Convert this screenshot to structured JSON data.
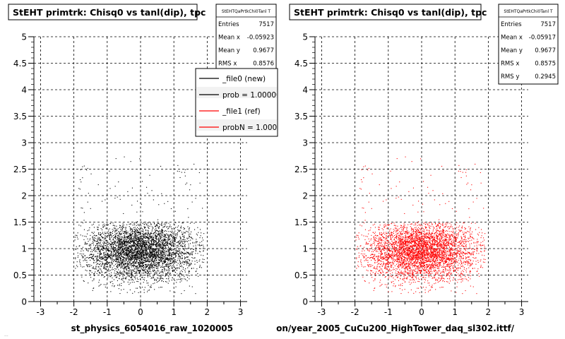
{
  "chart_data": [
    {
      "type": "scatter",
      "title": "StEHT primtrk: Chisq0 vs tanl(dip), tpc",
      "xlabel": "st_physics_6054016_raw_1020005",
      "ylabel": "",
      "xlim": [
        -3.2,
        3.2
      ],
      "ylim": [
        0,
        5
      ],
      "x_ticks": [
        "-3",
        "-2",
        "-1",
        "0",
        "1",
        "2",
        "3"
      ],
      "y_ticks": [
        "0",
        "0.5",
        "1",
        "1.5",
        "2",
        "2.5",
        "3",
        "3.5",
        "4",
        "4.5",
        "5"
      ],
      "grid": true,
      "marker_color": "#000000",
      "stats": {
        "name": "StEHTQaPrtkChi0Tanl T",
        "rows": [
          {
            "label": "Entries",
            "value": "7517"
          },
          {
            "label": "Mean x",
            "value": "-0.05923"
          },
          {
            "label": "Mean y",
            "value": "0.9677"
          },
          {
            "label": "RMS x",
            "value": "0.8576"
          }
        ]
      },
      "legend": {
        "placement": "top-right",
        "entries": [
          {
            "label": "_file0 (new)",
            "color": "#000000"
          },
          {
            "label": "prob = 1.000000",
            "color": "#000000"
          },
          {
            "label": "_file1 (ref)",
            "color": "#ff0000"
          },
          {
            "label": "probN = 1.000000",
            "color": "#ff0000"
          }
        ]
      },
      "distribution": {
        "entries": 7517,
        "x_center": -0.05923,
        "x_rms": 0.8576,
        "x_range": [
          -2.0,
          1.9
        ],
        "y_center": 0.9677,
        "y_range": [
          0.15,
          1.5
        ],
        "outlier_y_max": 2.75
      }
    },
    {
      "type": "scatter",
      "title": "StEHT primtrk: Chisq0 vs tanl(dip), tpc",
      "xlabel": "on/year_2005_CuCu200_HighTower_daq_sl302.ittf/",
      "ylabel": "",
      "xlim": [
        -3.2,
        3.2
      ],
      "ylim": [
        0,
        5
      ],
      "x_ticks": [
        "-3",
        "-2",
        "-1",
        "0",
        "1",
        "2",
        "3"
      ],
      "y_ticks": [
        "0",
        "0.5",
        "1",
        "1.5",
        "2",
        "2.5",
        "3",
        "3.5",
        "4",
        "4.5",
        "5"
      ],
      "grid": true,
      "marker_color": "#ff0000",
      "stats": {
        "name": "StEHTQaPrtkChi0Tanl T",
        "rows": [
          {
            "label": "Entries",
            "value": "7517"
          },
          {
            "label": "Mean x",
            "value": "-0.05917"
          },
          {
            "label": "Mean y",
            "value": "0.9677"
          },
          {
            "label": "RMS x",
            "value": "0.8575"
          },
          {
            "label": "RMS y",
            "value": "0.2945"
          }
        ]
      },
      "distribution": {
        "entries": 7517,
        "x_center": -0.05917,
        "x_rms": 0.8575,
        "x_range": [
          -2.0,
          1.9
        ],
        "y_center": 0.9677,
        "y_rms": 0.2945,
        "y_range": [
          0.15,
          1.5
        ],
        "outlier_y_max": 2.75
      }
    }
  ],
  "footer_text": "..."
}
